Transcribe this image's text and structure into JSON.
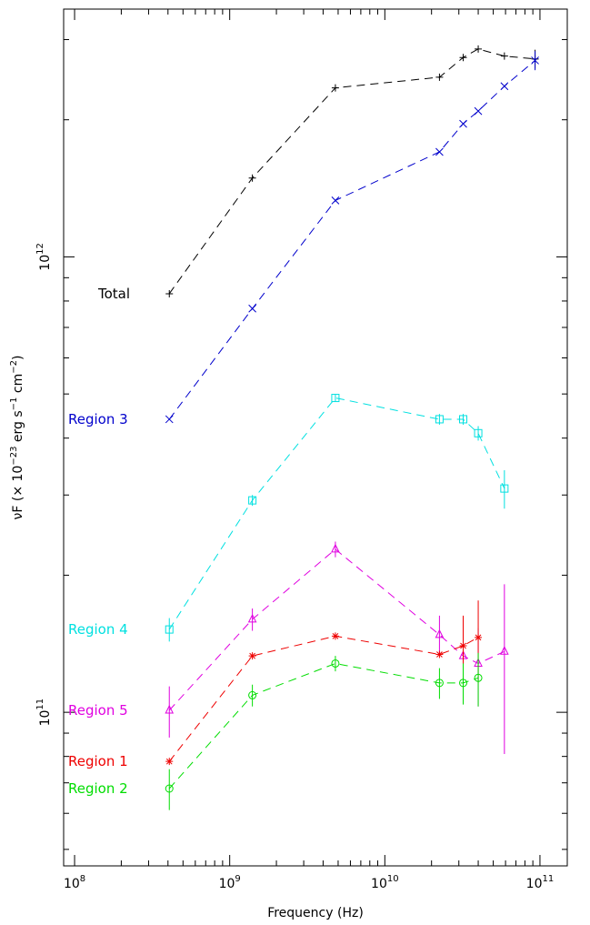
{
  "chart_data": {
    "type": "line",
    "xlabel": "Frequency (Hz)",
    "ylabel_prefix": "νF (× 10",
    "ylabel_exp1": "−23",
    "ylabel_mid": " erg s",
    "ylabel_exp2": "−1",
    "ylabel_mid2": " cm",
    "ylabel_exp3": "−2",
    "ylabel_suffix": ")",
    "x_scale": "log",
    "y_scale": "log",
    "xlim": [
      85000000,
      150000000000
    ],
    "ylim": [
      46000000000,
      3500000000000
    ],
    "x_ticks": [
      {
        "base": "10",
        "exp": "8",
        "value": 100000000
      },
      {
        "base": "10",
        "exp": "9",
        "value": 1000000000
      },
      {
        "base": "10",
        "exp": "10",
        "value": 10000000000
      },
      {
        "base": "10",
        "exp": "11",
        "value": 100000000000
      }
    ],
    "y_ticks": [
      {
        "base": "10",
        "exp": "11",
        "value": 100000000000
      },
      {
        "base": "10",
        "exp": "12",
        "value": 1000000000000
      }
    ],
    "grid": false,
    "legend": "inline-left",
    "series": [
      {
        "name": "Total",
        "color": "#000000",
        "marker": "plus",
        "x": [
          408000000,
          1400000000,
          4800000000,
          22500000000,
          32000000000,
          40000000000,
          59000000000,
          93000000000
        ],
        "y": [
          830000000000,
          1490000000000,
          2350000000000,
          2480000000000,
          2740000000000,
          2860000000000,
          2760000000000,
          2720000000000
        ],
        "err": [
          0,
          0,
          0,
          0,
          0,
          0,
          0,
          130000000000
        ]
      },
      {
        "name": "Region 3",
        "color": "#0000cc",
        "marker": "cross",
        "x": [
          408000000,
          1400000000,
          4800000000,
          22500000000,
          32000000000,
          40000000000,
          59000000000,
          93000000000
        ],
        "y": [
          440000000000,
          770000000000,
          1330000000000,
          1700000000000,
          1960000000000,
          2090000000000,
          2370000000000,
          2700000000000
        ],
        "err": [
          0,
          0,
          0,
          0,
          0,
          0,
          0,
          130000000000
        ]
      },
      {
        "name": "Region 4",
        "color": "#00e0e0",
        "marker": "square",
        "x": [
          408000000,
          1400000000,
          4800000000,
          22500000000,
          32000000000,
          40000000000,
          59000000000
        ],
        "y": [
          152000000000,
          292000000000,
          490000000000,
          440000000000,
          440000000000,
          410000000000,
          310000000000
        ],
        "err": [
          9000000000,
          8000000000,
          8000000000,
          12000000000,
          12000000000,
          15000000000,
          30000000000
        ]
      },
      {
        "name": "Region 5",
        "color": "#e000e0",
        "marker": "triangle",
        "x": [
          408000000,
          1400000000,
          4800000000,
          22500000000,
          32000000000,
          40000000000,
          59000000000
        ],
        "y": [
          101000000000,
          160000000000,
          228000000000,
          148000000000,
          133000000000,
          128000000000,
          136000000000
        ],
        "err": [
          13000000000,
          9000000000,
          9000000000,
          15000000000,
          17000000000,
          25000000000,
          55000000000
        ]
      },
      {
        "name": "Region 1",
        "color": "#ee0000",
        "marker": "star",
        "x": [
          408000000,
          1400000000,
          4800000000,
          22500000000,
          32000000000,
          40000000000
        ],
        "y": [
          78000000000,
          133000000000,
          147000000000,
          134000000000,
          140000000000,
          146000000000
        ],
        "err": [
          0,
          0,
          0,
          0,
          23000000000,
          30000000000
        ]
      },
      {
        "name": "Region 2",
        "color": "#00dd00",
        "marker": "circle",
        "x": [
          408000000,
          1400000000,
          4800000000,
          22500000000,
          32000000000,
          40000000000
        ],
        "y": [
          68000000000,
          109000000000,
          128000000000,
          116000000000,
          116000000000,
          119000000000
        ],
        "err": [
          7000000000,
          6000000000,
          5000000000,
          9000000000,
          12000000000,
          16000000000
        ]
      }
    ]
  }
}
